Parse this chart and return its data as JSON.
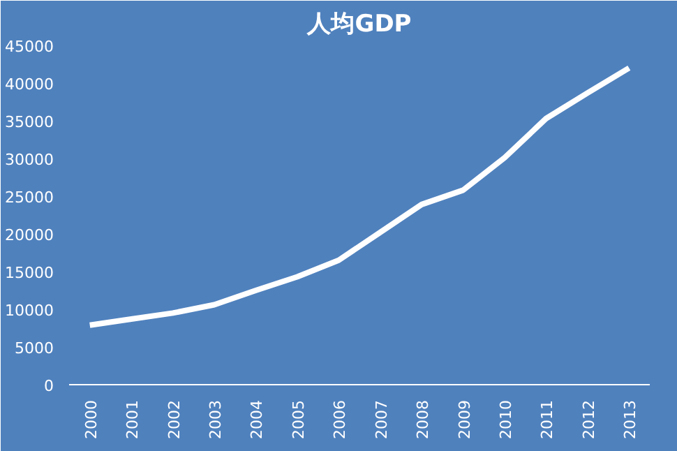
{
  "chart_data": {
    "type": "line",
    "title": "人均GDP",
    "categories": [
      "2000",
      "2001",
      "2002",
      "2003",
      "2004",
      "2005",
      "2006",
      "2007",
      "2008",
      "2009",
      "2010",
      "2011",
      "2012",
      "2013"
    ],
    "series": [
      {
        "color": "#ffffff",
        "values": [
          7900,
          8700,
          9500,
          10600,
          12500,
          14300,
          16500,
          20200,
          23900,
          25800,
          30100,
          35300,
          38700,
          42000
        ]
      }
    ],
    "ylim": [
      0,
      45000
    ],
    "yticks": [
      0,
      5000,
      10000,
      15000,
      20000,
      25000,
      30000,
      35000,
      40000,
      45000
    ],
    "grid": false,
    "marker": "none",
    "line_style": "solid"
  }
}
